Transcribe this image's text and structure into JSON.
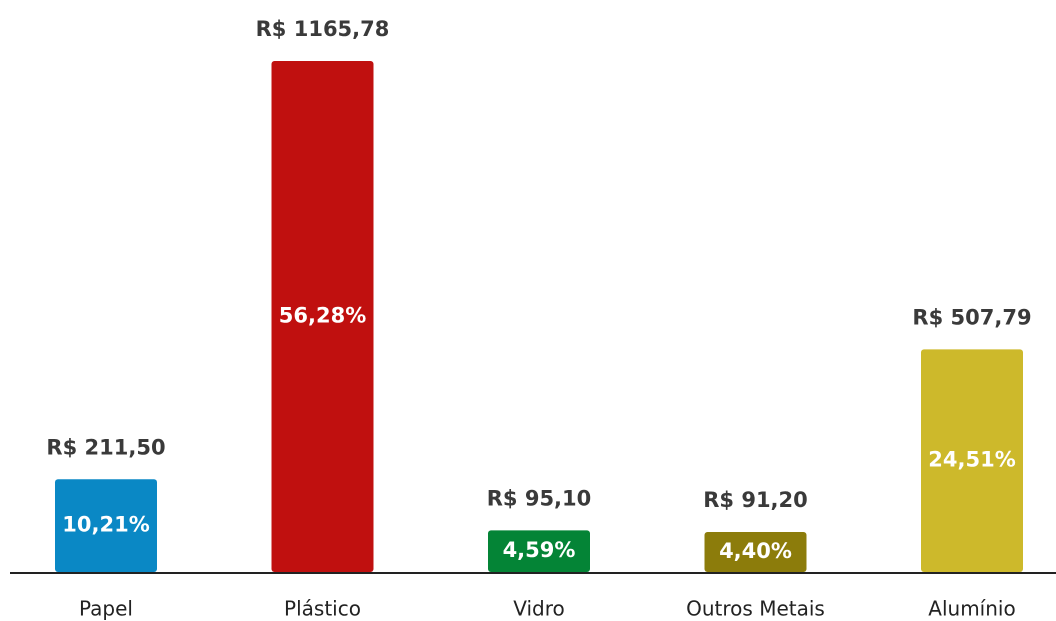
{
  "chart_data": {
    "type": "bar",
    "categories": [
      "Papel",
      "Plástico",
      "Vidro",
      "Outros Metais",
      "Alumínio"
    ],
    "values": [
      211.5,
      1165.78,
      95.1,
      91.2,
      507.79
    ],
    "value_labels": [
      "R$ 211,50",
      "R$ 1165,78",
      "R$ 95,10",
      "R$ 91,20",
      "R$ 507,79"
    ],
    "share_labels": [
      "10,21%",
      "56,28%",
      "4,59%",
      "4,40%",
      "24,51%"
    ],
    "colors": [
      "#0a88c5",
      "#c0100f",
      "#048436",
      "#8c7c0b",
      "#cdb92b"
    ]
  }
}
